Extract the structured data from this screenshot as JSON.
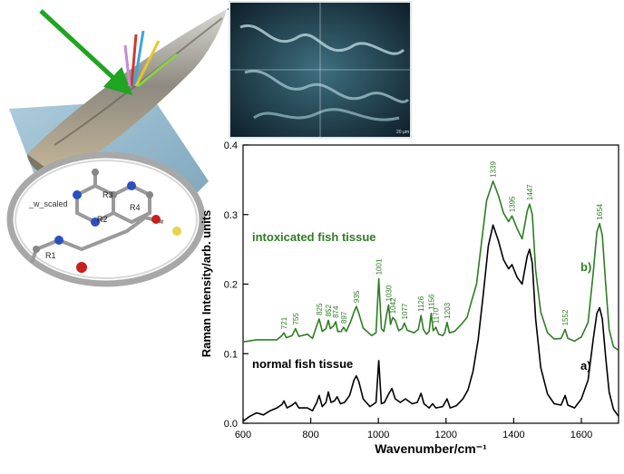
{
  "figure": {
    "micro_panel_label": "",
    "molecule_caption": "_w_scaled",
    "ring_labels": [
      "R1",
      "R2",
      "R3",
      "R4"
    ],
    "micro_scale_text": "20 μm"
  },
  "colors": {
    "intoxicated": "#2e7d23",
    "normal": "#000000",
    "arrow": "#1fa51f",
    "background": "#ffffff"
  },
  "chart_data": {
    "type": "line",
    "title": "",
    "xlabel": "Wavenumber/cm⁻¹",
    "ylabel": "Raman Intensity/arb. units",
    "xlim": [
      600,
      1710
    ],
    "ylim": [
      0,
      0.4
    ],
    "xticks": [
      600,
      800,
      1000,
      1200,
      1400,
      1600
    ],
    "yticks": [
      0.0,
      0.1,
      0.2,
      0.3,
      0.4
    ],
    "xtick_labels": [
      "600",
      "800",
      "1000",
      "1200",
      "1400",
      "1600"
    ],
    "ytick_labels": [
      "0.0",
      "0.1",
      "0.2",
      "0.3",
      "0.4"
    ],
    "grid": false,
    "series": [
      {
        "name": "intoxicated fish tissue",
        "curve_label": "b)",
        "color": "#2e7d23",
        "points": [
          [
            600,
            0.117
          ],
          [
            640,
            0.12
          ],
          [
            680,
            0.12
          ],
          [
            700,
            0.12
          ],
          [
            715,
            0.126
          ],
          [
            721,
            0.13
          ],
          [
            728,
            0.123
          ],
          [
            745,
            0.126
          ],
          [
            755,
            0.136
          ],
          [
            765,
            0.125
          ],
          [
            790,
            0.128
          ],
          [
            805,
            0.122
          ],
          [
            816,
            0.138
          ],
          [
            825,
            0.15
          ],
          [
            834,
            0.132
          ],
          [
            845,
            0.136
          ],
          [
            852,
            0.148
          ],
          [
            858,
            0.136
          ],
          [
            868,
            0.14
          ],
          [
            874,
            0.146
          ],
          [
            880,
            0.132
          ],
          [
            890,
            0.132
          ],
          [
            897,
            0.138
          ],
          [
            905,
            0.132
          ],
          [
            918,
            0.146
          ],
          [
            928,
            0.16
          ],
          [
            935,
            0.168
          ],
          [
            942,
            0.158
          ],
          [
            955,
            0.137
          ],
          [
            980,
            0.126
          ],
          [
            993,
            0.13
          ],
          [
            1001,
            0.208
          ],
          [
            1009,
            0.136
          ],
          [
            1016,
            0.132
          ],
          [
            1024,
            0.155
          ],
          [
            1030,
            0.17
          ],
          [
            1036,
            0.142
          ],
          [
            1042,
            0.152
          ],
          [
            1050,
            0.148
          ],
          [
            1060,
            0.133
          ],
          [
            1070,
            0.136
          ],
          [
            1077,
            0.144
          ],
          [
            1085,
            0.134
          ],
          [
            1105,
            0.13
          ],
          [
            1118,
            0.135
          ],
          [
            1126,
            0.155
          ],
          [
            1133,
            0.135
          ],
          [
            1142,
            0.128
          ],
          [
            1150,
            0.132
          ],
          [
            1156,
            0.158
          ],
          [
            1162,
            0.133
          ],
          [
            1170,
            0.138
          ],
          [
            1178,
            0.128
          ],
          [
            1190,
            0.126
          ],
          [
            1196,
            0.13
          ],
          [
            1203,
            0.145
          ],
          [
            1210,
            0.13
          ],
          [
            1225,
            0.132
          ],
          [
            1245,
            0.142
          ],
          [
            1262,
            0.152
          ],
          [
            1275,
            0.175
          ],
          [
            1290,
            0.2
          ],
          [
            1305,
            0.26
          ],
          [
            1320,
            0.32
          ],
          [
            1339,
            0.348
          ],
          [
            1355,
            0.327
          ],
          [
            1370,
            0.302
          ],
          [
            1385,
            0.29
          ],
          [
            1395,
            0.298
          ],
          [
            1410,
            0.28
          ],
          [
            1425,
            0.265
          ],
          [
            1440,
            0.305
          ],
          [
            1447,
            0.315
          ],
          [
            1455,
            0.3
          ],
          [
            1465,
            0.22
          ],
          [
            1480,
            0.16
          ],
          [
            1500,
            0.13
          ],
          [
            1520,
            0.121
          ],
          [
            1540,
            0.122
          ],
          [
            1552,
            0.135
          ],
          [
            1560,
            0.122
          ],
          [
            1580,
            0.118
          ],
          [
            1600,
            0.124
          ],
          [
            1620,
            0.145
          ],
          [
            1635,
            0.215
          ],
          [
            1646,
            0.275
          ],
          [
            1654,
            0.287
          ],
          [
            1662,
            0.27
          ],
          [
            1672,
            0.2
          ],
          [
            1682,
            0.135
          ],
          [
            1695,
            0.11
          ],
          [
            1710,
            0.105
          ]
        ]
      },
      {
        "name": "normal fish tissue",
        "curve_label": "a)",
        "color": "#000000",
        "points": [
          [
            600,
            0.003
          ],
          [
            620,
            0.01
          ],
          [
            640,
            0.015
          ],
          [
            660,
            0.012
          ],
          [
            680,
            0.018
          ],
          [
            700,
            0.022
          ],
          [
            715,
            0.027
          ],
          [
            721,
            0.032
          ],
          [
            730,
            0.022
          ],
          [
            745,
            0.026
          ],
          [
            755,
            0.03
          ],
          [
            765,
            0.022
          ],
          [
            790,
            0.022
          ],
          [
            805,
            0.018
          ],
          [
            818,
            0.03
          ],
          [
            825,
            0.04
          ],
          [
            834,
            0.024
          ],
          [
            845,
            0.03
          ],
          [
            852,
            0.045
          ],
          [
            860,
            0.03
          ],
          [
            870,
            0.032
          ],
          [
            878,
            0.038
          ],
          [
            888,
            0.028
          ],
          [
            900,
            0.03
          ],
          [
            915,
            0.04
          ],
          [
            928,
            0.062
          ],
          [
            935,
            0.068
          ],
          [
            942,
            0.06
          ],
          [
            955,
            0.035
          ],
          [
            975,
            0.024
          ],
          [
            993,
            0.03
          ],
          [
            1001,
            0.09
          ],
          [
            1009,
            0.028
          ],
          [
            1018,
            0.03
          ],
          [
            1030,
            0.042
          ],
          [
            1040,
            0.05
          ],
          [
            1050,
            0.035
          ],
          [
            1065,
            0.03
          ],
          [
            1080,
            0.035
          ],
          [
            1100,
            0.028
          ],
          [
            1115,
            0.03
          ],
          [
            1126,
            0.043
          ],
          [
            1135,
            0.028
          ],
          [
            1150,
            0.022
          ],
          [
            1160,
            0.028
          ],
          [
            1170,
            0.022
          ],
          [
            1190,
            0.024
          ],
          [
            1203,
            0.035
          ],
          [
            1212,
            0.022
          ],
          [
            1230,
            0.025
          ],
          [
            1250,
            0.035
          ],
          [
            1265,
            0.048
          ],
          [
            1280,
            0.075
          ],
          [
            1295,
            0.12
          ],
          [
            1310,
            0.185
          ],
          [
            1325,
            0.255
          ],
          [
            1339,
            0.285
          ],
          [
            1355,
            0.262
          ],
          [
            1370,
            0.235
          ],
          [
            1385,
            0.222
          ],
          [
            1395,
            0.228
          ],
          [
            1410,
            0.21
          ],
          [
            1425,
            0.2
          ],
          [
            1440,
            0.24
          ],
          [
            1447,
            0.25
          ],
          [
            1455,
            0.23
          ],
          [
            1465,
            0.15
          ],
          [
            1480,
            0.08
          ],
          [
            1500,
            0.042
          ],
          [
            1520,
            0.028
          ],
          [
            1540,
            0.026
          ],
          [
            1552,
            0.04
          ],
          [
            1560,
            0.026
          ],
          [
            1580,
            0.022
          ],
          [
            1600,
            0.035
          ],
          [
            1620,
            0.062
          ],
          [
            1635,
            0.12
          ],
          [
            1646,
            0.158
          ],
          [
            1654,
            0.166
          ],
          [
            1662,
            0.15
          ],
          [
            1672,
            0.095
          ],
          [
            1682,
            0.045
          ],
          [
            1695,
            0.02
          ],
          [
            1710,
            0.01
          ]
        ]
      }
    ],
    "peak_labels": [
      {
        "text": "721",
        "x": 721,
        "y": 0.13
      },
      {
        "text": "755",
        "x": 755,
        "y": 0.136
      },
      {
        "text": "825",
        "x": 825,
        "y": 0.15
      },
      {
        "text": "852",
        "x": 852,
        "y": 0.148
      },
      {
        "text": "874",
        "x": 874,
        "y": 0.146
      },
      {
        "text": "897",
        "x": 897,
        "y": 0.138
      },
      {
        "text": "935",
        "x": 935,
        "y": 0.168
      },
      {
        "text": "1001",
        "x": 1001,
        "y": 0.208
      },
      {
        "text": "1030",
        "x": 1030,
        "y": 0.17
      },
      {
        "text": "1042",
        "x": 1042,
        "y": 0.152
      },
      {
        "text": "1077",
        "x": 1077,
        "y": 0.144
      },
      {
        "text": "1126",
        "x": 1126,
        "y": 0.155
      },
      {
        "text": "1156",
        "x": 1156,
        "y": 0.158
      },
      {
        "text": "1170",
        "x": 1170,
        "y": 0.138
      },
      {
        "text": "1203",
        "x": 1203,
        "y": 0.145
      },
      {
        "text": "1339",
        "x": 1339,
        "y": 0.348
      },
      {
        "text": "1395",
        "x": 1395,
        "y": 0.298
      },
      {
        "text": "1447",
        "x": 1447,
        "y": 0.315
      },
      {
        "text": "1552",
        "x": 1552,
        "y": 0.135
      },
      {
        "text": "1654",
        "x": 1654,
        "y": 0.287
      }
    ]
  }
}
